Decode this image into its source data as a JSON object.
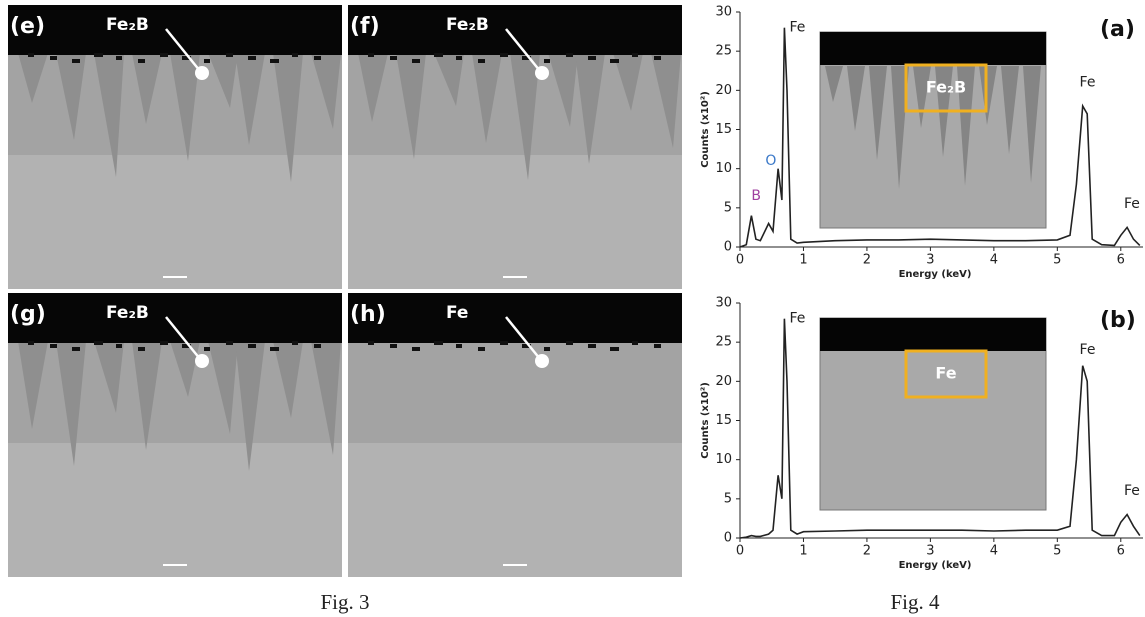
{
  "fig3": {
    "caption": "Fig. 3",
    "panels": [
      {
        "label": "(e)",
        "phase": "Fe₂B"
      },
      {
        "label": "(f)",
        "phase": "Fe₂B"
      },
      {
        "label": "(g)",
        "phase": "Fe₂B"
      },
      {
        "label": "(h)",
        "phase": "Fe"
      }
    ]
  },
  "fig4": {
    "caption": "Fig. 4"
  },
  "chart_data": [
    {
      "type": "line",
      "panel_label": "(a)",
      "inset_label": "Fe₂B",
      "x_label": "Energy (keV)",
      "y_label": "Counts (x10²)",
      "color": "#222",
      "x": [
        0,
        0.1,
        0.18,
        0.25,
        0.32,
        0.45,
        0.52,
        0.6,
        0.66,
        0.7,
        0.74,
        0.8,
        0.9,
        1.0,
        1.5,
        2,
        2.5,
        3,
        3.5,
        4,
        4.5,
        5,
        5.2,
        5.3,
        5.4,
        5.47,
        5.55,
        5.7,
        5.9,
        6.0,
        6.1,
        6.2,
        6.3
      ],
      "values": [
        0,
        0.3,
        4,
        1,
        0.8,
        3,
        2,
        10,
        6,
        28,
        20,
        1,
        0.5,
        0.6,
        0.8,
        0.9,
        0.9,
        1,
        0.9,
        0.8,
        0.8,
        0.9,
        1.5,
        8,
        18,
        17,
        1,
        0.3,
        0.2,
        1.5,
        2.5,
        1,
        0.2
      ],
      "xlim": [
        0,
        6.35
      ],
      "ylim": [
        0,
        30
      ],
      "xticks": [
        0,
        1,
        2,
        3,
        4,
        5,
        6
      ],
      "yticks": [
        0,
        5,
        10,
        15,
        20,
        25,
        30
      ],
      "annotations": [
        {
          "text": "B",
          "x": 0.18,
          "y": 6.5,
          "color": "#a040a0"
        },
        {
          "text": "O",
          "x": 0.4,
          "y": 11,
          "color": "#3a78c8"
        },
        {
          "text": "Fe",
          "x": 0.78,
          "y": 28,
          "color": "#222"
        },
        {
          "text": "Fe",
          "x": 5.35,
          "y": 21,
          "color": "#222"
        },
        {
          "text": "Fe",
          "x": 6.05,
          "y": 5.5,
          "color": "#222"
        }
      ]
    },
    {
      "type": "line",
      "panel_label": "(b)",
      "inset_label": "Fe",
      "x_label": "Energy (keV)",
      "y_label": "Counts (x10²)",
      "color": "#222",
      "x": [
        0,
        0.1,
        0.18,
        0.25,
        0.32,
        0.45,
        0.52,
        0.6,
        0.66,
        0.7,
        0.74,
        0.8,
        0.9,
        1.0,
        1.5,
        2,
        2.5,
        3,
        3.5,
        4,
        4.5,
        5,
        5.2,
        5.3,
        5.4,
        5.47,
        5.55,
        5.7,
        5.9,
        6.0,
        6.1,
        6.2,
        6.3
      ],
      "values": [
        0,
        0.1,
        0.3,
        0.2,
        0.2,
        0.5,
        1,
        8,
        5,
        28,
        20,
        1,
        0.5,
        0.8,
        0.9,
        1,
        1,
        1,
        1,
        0.9,
        1,
        1,
        1.5,
        10,
        22,
        20,
        1,
        0.3,
        0.3,
        2,
        3,
        1.5,
        0.3
      ],
      "xlim": [
        0,
        6.35
      ],
      "ylim": [
        0,
        30
      ],
      "xticks": [
        0,
        1,
        2,
        3,
        4,
        5,
        6
      ],
      "yticks": [
        0,
        5,
        10,
        15,
        20,
        25,
        30
      ],
      "annotations": [
        {
          "text": "Fe",
          "x": 0.78,
          "y": 28,
          "color": "#222"
        },
        {
          "text": "Fe",
          "x": 5.35,
          "y": 24,
          "color": "#222"
        },
        {
          "text": "Fe",
          "x": 6.05,
          "y": 6,
          "color": "#222"
        }
      ]
    }
  ]
}
